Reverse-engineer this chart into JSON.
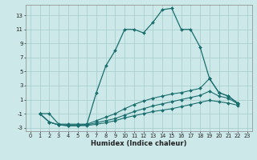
{
  "xlabel": "Humidex (Indice chaleur)",
  "background_color": "#cce8e8",
  "grid_color": "#aacfcf",
  "line_color": "#1a6e6e",
  "xlim": [
    -0.5,
    23.5
  ],
  "ylim": [
    -3.5,
    14.5
  ],
  "yticks": [
    -3,
    -1,
    1,
    3,
    5,
    7,
    9,
    11,
    13
  ],
  "xticks": [
    0,
    1,
    2,
    3,
    4,
    5,
    6,
    7,
    8,
    9,
    10,
    11,
    12,
    13,
    14,
    15,
    16,
    17,
    18,
    19,
    20,
    21,
    22,
    23
  ],
  "series1_x": [
    1,
    2,
    3,
    4,
    5,
    6,
    7,
    8,
    9,
    10,
    11,
    12,
    13,
    14,
    15,
    16,
    17,
    18,
    19,
    20,
    21,
    22
  ],
  "series1_y": [
    -1,
    -1,
    -2.5,
    -2.5,
    -2.5,
    -2.5,
    2.0,
    5.8,
    8.0,
    11,
    11,
    10.5,
    12,
    13.8,
    14,
    11,
    11,
    8.5,
    4.0,
    2.0,
    1.5,
    0.5
  ],
  "series2_x": [
    1,
    2,
    3,
    4,
    5,
    6,
    7,
    8,
    9,
    10,
    11,
    12,
    13,
    14,
    15,
    16,
    17,
    18,
    19,
    20,
    21,
    22
  ],
  "series2_y": [
    -1,
    -2.2,
    -2.6,
    -2.7,
    -2.7,
    -2.5,
    -2.0,
    -1.5,
    -1.0,
    -0.3,
    0.3,
    0.8,
    1.2,
    1.5,
    1.8,
    2.0,
    2.3,
    2.6,
    4.0,
    2.0,
    1.5,
    0.5
  ],
  "series3_x": [
    1,
    2,
    3,
    4,
    5,
    6,
    7,
    8,
    9,
    10,
    11,
    12,
    13,
    14,
    15,
    16,
    17,
    18,
    19,
    20,
    21,
    22
  ],
  "series3_y": [
    -1,
    -2.2,
    -2.6,
    -2.7,
    -2.7,
    -2.6,
    -2.3,
    -2.0,
    -1.7,
    -1.2,
    -0.7,
    -0.3,
    0.1,
    0.4,
    0.7,
    1.0,
    1.3,
    1.6,
    2.2,
    1.5,
    1.2,
    0.4
  ],
  "series4_x": [
    1,
    2,
    3,
    4,
    5,
    6,
    7,
    8,
    9,
    10,
    11,
    12,
    13,
    14,
    15,
    16,
    17,
    18,
    19,
    20,
    21,
    22
  ],
  "series4_y": [
    -1,
    -2.2,
    -2.6,
    -2.7,
    -2.7,
    -2.7,
    -2.5,
    -2.3,
    -2.0,
    -1.6,
    -1.3,
    -1.0,
    -0.7,
    -0.5,
    -0.3,
    0.0,
    0.3,
    0.6,
    0.9,
    0.7,
    0.5,
    0.2
  ]
}
